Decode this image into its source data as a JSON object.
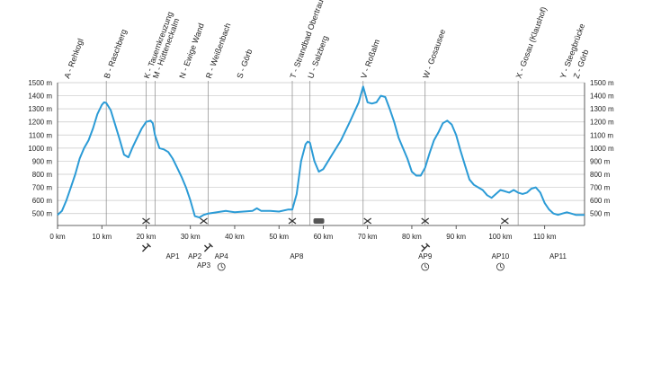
{
  "chart_data": {
    "type": "line",
    "title": "",
    "xlabel": "",
    "ylabel": "",
    "x_unit": "km",
    "y_unit": "m",
    "xlim": [
      0,
      119
    ],
    "ylim": [
      450,
      1500
    ],
    "x_ticks": [
      0,
      10,
      20,
      30,
      40,
      50,
      60,
      70,
      80,
      90,
      100,
      110
    ],
    "x_tick_labels": [
      "0 km",
      "10 km",
      "20 km",
      "30 km",
      "40 km",
      "50 km",
      "60 km",
      "70 km",
      "80 km",
      "90 km",
      "100 km",
      "110 km"
    ],
    "y_ticks": [
      500,
      600,
      700,
      800,
      900,
      1000,
      1100,
      1200,
      1300,
      1400,
      1500
    ],
    "y_tick_labels": [
      "500 m",
      "600 m",
      "700 m",
      "800 m",
      "900 m",
      "1000 m",
      "1100 m",
      "1200 m",
      "1300 m",
      "1400 m",
      "1500 m"
    ],
    "grid": true,
    "line_color": "#2b9bd6",
    "series": [
      {
        "name": "",
        "x": [
          0,
          1,
          2,
          3,
          4,
          5,
          6,
          7,
          8,
          9,
          10,
          10.5,
          11,
          12,
          13,
          14,
          15,
          16,
          17,
          18,
          19,
          20,
          21,
          21.5,
          22,
          23,
          24,
          25,
          26,
          27,
          28,
          29,
          30,
          31,
          32,
          33,
          34,
          36,
          38,
          40,
          42,
          44,
          45,
          46,
          48,
          50,
          52,
          53,
          54,
          55,
          56,
          56.5,
          57,
          58,
          59,
          60,
          62,
          64,
          66,
          68,
          69,
          70,
          71,
          72,
          73,
          74,
          75,
          76,
          77,
          78,
          79,
          80,
          81,
          82,
          83,
          84,
          85,
          86,
          87,
          88,
          89,
          90,
          91,
          92,
          93,
          94,
          95,
          96,
          97,
          98,
          99,
          100,
          101,
          102,
          103,
          104,
          105,
          106,
          107,
          108,
          109,
          110,
          111,
          112,
          113,
          114,
          115,
          116,
          117,
          118,
          119
        ],
        "y": [
          490,
          520,
          600,
          700,
          800,
          920,
          1000,
          1060,
          1150,
          1260,
          1330,
          1350,
          1345,
          1290,
          1180,
          1070,
          950,
          930,
          1010,
          1080,
          1150,
          1200,
          1210,
          1190,
          1100,
          1000,
          990,
          970,
          920,
          850,
          780,
          700,
          600,
          480,
          470,
          490,
          500,
          510,
          520,
          510,
          515,
          520,
          540,
          520,
          520,
          515,
          530,
          530,
          650,
          900,
          1030,
          1050,
          1040,
          900,
          820,
          840,
          950,
          1060,
          1200,
          1350,
          1470,
          1350,
          1340,
          1350,
          1400,
          1390,
          1300,
          1200,
          1080,
          1000,
          920,
          820,
          790,
          790,
          850,
          960,
          1060,
          1120,
          1190,
          1210,
          1180,
          1100,
          980,
          870,
          760,
          720,
          700,
          680,
          640,
          620,
          650,
          680,
          670,
          660,
          680,
          660,
          650,
          660,
          690,
          700,
          660,
          580,
          530,
          500,
          490,
          500,
          510,
          500,
          490,
          490,
          490
        ]
      }
    ],
    "waypoints": [
      {
        "km": 2,
        "label": "A - Rehkogl",
        "leader": false
      },
      {
        "km": 11,
        "label": "B - Raschberg",
        "leader": true
      },
      {
        "km": 20,
        "label": "K - Tauernkreuzung",
        "leader": true
      },
      {
        "km": 22,
        "label": "M - Hütteneckalm",
        "leader": true
      },
      {
        "km": 28,
        "label": "N - Ewige Wand",
        "leader": false
      },
      {
        "km": 34,
        "label": "R - Weißenbach",
        "leader": true
      },
      {
        "km": 41,
        "label": "S - Görb",
        "leader": false
      },
      {
        "km": 53,
        "label": "T - Strandbad Obertraun",
        "leader": true
      },
      {
        "km": 57,
        "label": "U - Salzberg",
        "leader": true
      },
      {
        "km": 69,
        "label": "V - Roßalm",
        "leader": true
      },
      {
        "km": 83,
        "label": "W - Gosausee",
        "leader": true
      },
      {
        "km": 104,
        "label": "X - Gosau (Klaushof)",
        "leader": true
      },
      {
        "km": 114,
        "label": "Y - Steegbrücke",
        "leader": false
      },
      {
        "km": 117,
        "label": "Z - Görb",
        "leader": false
      }
    ],
    "baseline_markers": [
      {
        "km": 20,
        "kind": "cross"
      },
      {
        "km": 33,
        "kind": "cross"
      },
      {
        "km": 53,
        "kind": "cross"
      },
      {
        "km": 59,
        "kind": "bus"
      },
      {
        "km": 70,
        "kind": "cross"
      },
      {
        "km": 83,
        "kind": "cross"
      },
      {
        "km": 101,
        "kind": "cross"
      }
    ],
    "aid_stations": [
      {
        "km": 26,
        "label": "AP1",
        "icon": "none"
      },
      {
        "km": 31,
        "label": "AP2",
        "icon": "none"
      },
      {
        "km": 33,
        "label": "AP3",
        "icon": "none",
        "row": 2
      },
      {
        "km": 37,
        "label": "AP4",
        "icon": "clock"
      },
      {
        "km": 54,
        "label": "AP8",
        "icon": "none"
      },
      {
        "km": 83,
        "label": "AP9",
        "icon": "clock"
      },
      {
        "km": 100,
        "label": "AP10",
        "icon": "clock"
      },
      {
        "km": 113,
        "label": "AP11",
        "icon": "none"
      }
    ],
    "tool_icons": [
      {
        "km": 20,
        "kind": "wrench"
      },
      {
        "km": 34,
        "kind": "wrench"
      },
      {
        "km": 83,
        "kind": "wrench"
      }
    ]
  }
}
